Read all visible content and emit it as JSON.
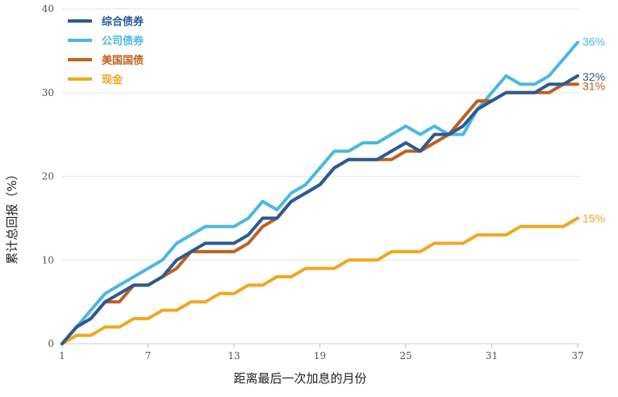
{
  "chart_data": {
    "type": "line",
    "xlabel": "距离最后一次加息的月份",
    "ylabel": "累计总回报（%）",
    "xlim": [
      1,
      37
    ],
    "ylim": [
      0,
      40
    ],
    "x_ticks": [
      1,
      7,
      13,
      19,
      25,
      31,
      37
    ],
    "y_ticks": [
      0,
      10,
      20,
      30,
      40
    ],
    "grid": "horizontal",
    "legend_position": "top-left",
    "x": [
      1,
      2,
      3,
      4,
      5,
      6,
      7,
      8,
      9,
      10,
      11,
      12,
      13,
      14,
      15,
      16,
      17,
      18,
      19,
      20,
      21,
      22,
      23,
      24,
      25,
      26,
      27,
      28,
      29,
      30,
      31,
      32,
      33,
      34,
      35,
      36,
      37
    ],
    "series": [
      {
        "name": "综合债券",
        "color": "#2b5a92",
        "end_label": "32%",
        "values": [
          0,
          2,
          3,
          5,
          6,
          7,
          7,
          8,
          10,
          11,
          12,
          12,
          12,
          13,
          15,
          15,
          17,
          18,
          19,
          21,
          22,
          22,
          22,
          23,
          24,
          23,
          25,
          25,
          26,
          28,
          29,
          30,
          30,
          30,
          31,
          31,
          32
        ]
      },
      {
        "name": "公司债券",
        "color": "#4ab8e2",
        "end_label": "36%",
        "values": [
          0,
          2,
          4,
          6,
          7,
          8,
          9,
          10,
          12,
          13,
          14,
          14,
          14,
          15,
          17,
          16,
          18,
          19,
          21,
          23,
          23,
          24,
          24,
          25,
          26,
          25,
          26,
          25,
          25,
          28,
          30,
          32,
          31,
          31,
          32,
          34,
          36
        ]
      },
      {
        "name": "美国国债",
        "color": "#c0601f",
        "end_label": "31%",
        "values": [
          0,
          2,
          3,
          5,
          5,
          7,
          7,
          8,
          9,
          11,
          11,
          11,
          11,
          12,
          14,
          15,
          17,
          18,
          19,
          21,
          22,
          22,
          22,
          22,
          23,
          23,
          24,
          25,
          27,
          29,
          29,
          30,
          30,
          30,
          30,
          31,
          31
        ]
      },
      {
        "name": "现金",
        "color": "#f0a820",
        "end_label": "15%",
        "values": [
          0,
          1,
          1,
          2,
          2,
          3,
          3,
          4,
          4,
          5,
          5,
          6,
          6,
          7,
          7,
          8,
          8,
          9,
          9,
          9,
          10,
          10,
          10,
          11,
          11,
          11,
          12,
          12,
          12,
          13,
          13,
          13,
          14,
          14,
          14,
          14,
          15
        ]
      }
    ]
  }
}
